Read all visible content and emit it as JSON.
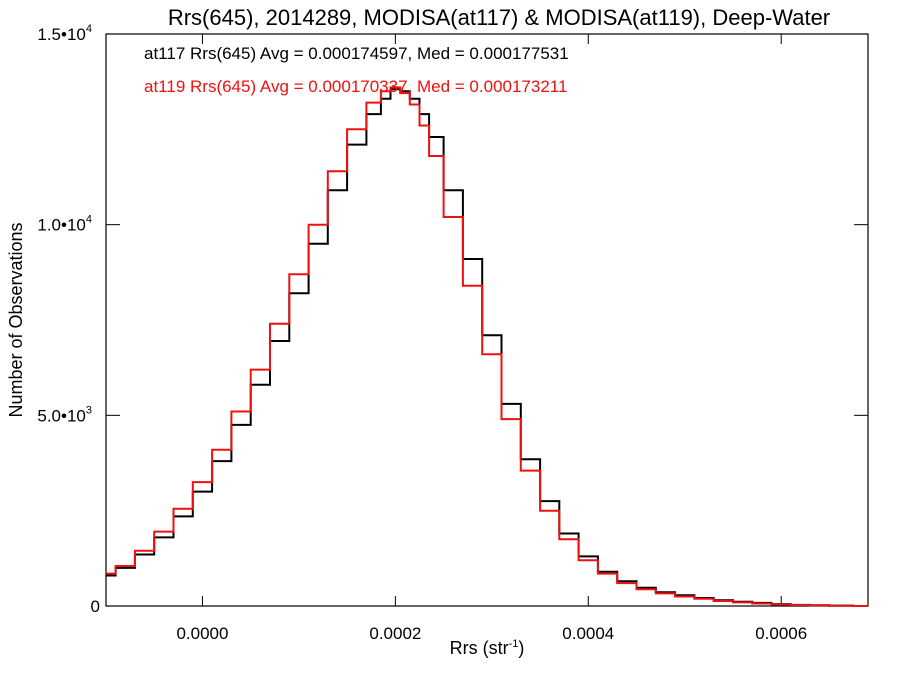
{
  "chart_data": {
    "type": "line",
    "title": "Rrs(645), 2014289, MODISA(at117) & MODISA(at119), Deep-Water",
    "xlabel_main": "Rrs (str",
    "xlabel_sup": "-1",
    "xlabel_end": ")",
    "ylabel": "Number of Observations",
    "xlim": [
      -0.0001,
      0.00069
    ],
    "ylim": [
      0,
      15000
    ],
    "x_ticks": [
      0.0,
      0.0002,
      0.0004,
      0.0006
    ],
    "x_tick_labels": [
      "0.0000",
      "0.0002",
      "0.0004",
      "0.0006"
    ],
    "y_ticks": [
      0,
      5000,
      10000,
      15000
    ],
    "y_tick_labels": [
      {
        "base": "0",
        "exp": ""
      },
      {
        "base": "5.0•10",
        "exp": "3"
      },
      {
        "base": "1.0•10",
        "exp": "4"
      },
      {
        "base": "1.5•10",
        "exp": "4"
      }
    ],
    "grid": false,
    "annotations": [
      {
        "text": "at117 Rrs(645) Avg = 0.000174597, Med = 0.000177531",
        "color": "#000000"
      },
      {
        "text": "at119 Rrs(645) Avg = 0.000170337, Med = 0.000173211",
        "color": "#ee1111"
      }
    ],
    "series": [
      {
        "color": "#000000",
        "x": [
          -0.0001,
          -8e-05,
          -6e-05,
          -4e-05,
          -2e-05,
          0.0,
          2e-05,
          4e-05,
          6e-05,
          8e-05,
          0.0001,
          0.00012,
          0.00014,
          0.00016,
          0.00018,
          0.00019,
          0.0002,
          0.00021,
          0.00022,
          0.00023,
          0.00024,
          0.00026,
          0.00028,
          0.0003,
          0.00032,
          0.00034,
          0.00036,
          0.00038,
          0.0004,
          0.00042,
          0.00044,
          0.00046,
          0.00048,
          0.0005,
          0.00052,
          0.00054,
          0.00056,
          0.00058,
          0.0006,
          0.00062,
          0.00064,
          0.00066,
          0.00069
        ],
        "y": [
          800,
          1000,
          1350,
          1800,
          2350,
          3000,
          3800,
          4750,
          5800,
          6950,
          8200,
          9500,
          10900,
          12100,
          12900,
          13300,
          13550,
          13500,
          13300,
          12900,
          12300,
          10900,
          9100,
          7100,
          5300,
          3850,
          2750,
          1900,
          1300,
          900,
          650,
          480,
          360,
          280,
          210,
          150,
          110,
          80,
          50,
          30,
          20,
          10,
          0
        ]
      },
      {
        "color": "#ee1111",
        "x": [
          -0.0001,
          -8e-05,
          -6e-05,
          -4e-05,
          -2e-05,
          0.0,
          2e-05,
          4e-05,
          6e-05,
          8e-05,
          0.0001,
          0.00012,
          0.00014,
          0.00016,
          0.00018,
          0.00019,
          0.0002,
          0.00021,
          0.00022,
          0.00023,
          0.00024,
          0.00026,
          0.00028,
          0.0003,
          0.00032,
          0.00034,
          0.00036,
          0.00038,
          0.0004,
          0.00042,
          0.00044,
          0.00046,
          0.00048,
          0.0005,
          0.00052,
          0.00054,
          0.00056,
          0.00058,
          0.0006,
          0.00062,
          0.00064,
          0.00066,
          0.00069
        ],
        "y": [
          850,
          1050,
          1450,
          1950,
          2550,
          3250,
          4100,
          5100,
          6200,
          7400,
          8700,
          10000,
          11400,
          12500,
          13200,
          13500,
          13600,
          13450,
          13150,
          12600,
          11800,
          10200,
          8400,
          6600,
          4900,
          3550,
          2500,
          1750,
          1200,
          850,
          600,
          440,
          330,
          250,
          190,
          130,
          95,
          65,
          40,
          25,
          15,
          5,
          0
        ]
      }
    ]
  }
}
